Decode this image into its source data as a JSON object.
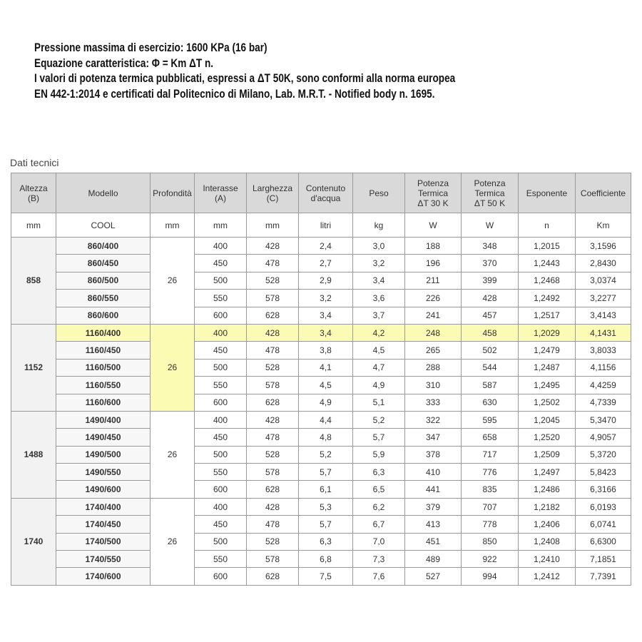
{
  "notes": [
    "Pressione massima di esercizio: 1600 KPa (16 bar)",
    "Equazione caratteristica: Φ = Km ΔT n.",
    "I valori di potenza termica pubblicati, espressi a ΔT 50K, sono conformi alla norma europea",
    "EN 442-1:2014 e certificati dal Politecnico di Milano, Lab. M.R.T. - Notified body n. 1695."
  ],
  "caption": "Dati tecnici",
  "table": {
    "header": [
      "Altezza\n(B)",
      "Modello",
      "Profondità",
      "Interasse\n(A)",
      "Larghezza\n(C)",
      "Contenuto\nd'acqua",
      "Peso",
      "Potenza\nTermica\nΔT 30 K",
      "Potenza\nTermica\nΔT 50 K",
      "Esponente",
      "Coefficiente"
    ],
    "units": [
      "mm",
      "COOL",
      "mm",
      "mm",
      "mm",
      "litri",
      "kg",
      "W",
      "W",
      "n",
      "Km"
    ],
    "groups": [
      {
        "altezza": "858",
        "profondita": "26",
        "rows": [
          [
            "860/400",
            "400",
            "428",
            "2,4",
            "3,0",
            "188",
            "348",
            "1,2015",
            "3,1596"
          ],
          [
            "860/450",
            "450",
            "478",
            "2,7",
            "3,2",
            "196",
            "370",
            "1,2443",
            "2,8430"
          ],
          [
            "860/500",
            "500",
            "528",
            "2,9",
            "3,4",
            "211",
            "399",
            "1,2468",
            "3,0374"
          ],
          [
            "860/550",
            "550",
            "578",
            "3,2",
            "3,6",
            "226",
            "428",
            "1,2492",
            "3,2277"
          ],
          [
            "860/600",
            "600",
            "628",
            "3,4",
            "3,7",
            "241",
            "457",
            "1,2517",
            "3,4143"
          ]
        ]
      },
      {
        "altezza": "1152",
        "profondita": "26",
        "rows": [
          [
            "1160/400",
            "400",
            "428",
            "3,4",
            "4,2",
            "248",
            "458",
            "1,2029",
            "4,1431"
          ],
          [
            "1160/450",
            "450",
            "478",
            "3,8",
            "4,5",
            "265",
            "502",
            "1,2479",
            "3,8033"
          ],
          [
            "1160/500",
            "500",
            "528",
            "4,1",
            "4,7",
            "288",
            "544",
            "1,2487",
            "4,1156"
          ],
          [
            "1160/550",
            "550",
            "578",
            "4,5",
            "4,9",
            "310",
            "587",
            "1,2495",
            "4,4259"
          ],
          [
            "1160/600",
            "600",
            "628",
            "4,9",
            "5,1",
            "333",
            "630",
            "1,2502",
            "4,7339"
          ]
        ]
      },
      {
        "altezza": "1488",
        "profondita": "26",
        "rows": [
          [
            "1490/400",
            "400",
            "428",
            "4,4",
            "5,2",
            "322",
            "595",
            "1,2045",
            "5,3470"
          ],
          [
            "1490/450",
            "450",
            "478",
            "4,8",
            "5,7",
            "347",
            "658",
            "1,2520",
            "4,9057"
          ],
          [
            "1490/500",
            "500",
            "528",
            "5,2",
            "5,9",
            "378",
            "717",
            "1,2509",
            "5,3720"
          ],
          [
            "1490/550",
            "550",
            "578",
            "5,7",
            "6,3",
            "410",
            "776",
            "1,2497",
            "5,8423"
          ],
          [
            "1490/600",
            "600",
            "628",
            "6,1",
            "6,5",
            "441",
            "835",
            "1,2486",
            "6,3166"
          ]
        ]
      },
      {
        "altezza": "1740",
        "profondita": "26",
        "rows": [
          [
            "1740/400",
            "400",
            "428",
            "5,3",
            "6,2",
            "379",
            "707",
            "1,2182",
            "6,0193"
          ],
          [
            "1740/450",
            "450",
            "478",
            "5,7",
            "6,7",
            "413",
            "778",
            "1,2406",
            "6,0741"
          ],
          [
            "1740/500",
            "500",
            "528",
            "6,3",
            "7,0",
            "451",
            "850",
            "1,2408",
            "6,6300"
          ],
          [
            "1740/550",
            "550",
            "578",
            "6,8",
            "7,3",
            "489",
            "922",
            "1,2410",
            "7,1851"
          ],
          [
            "1740/600",
            "600",
            "628",
            "7,5",
            "7,6",
            "527",
            "994",
            "1,2412",
            "7,7391"
          ]
        ]
      }
    ]
  }
}
